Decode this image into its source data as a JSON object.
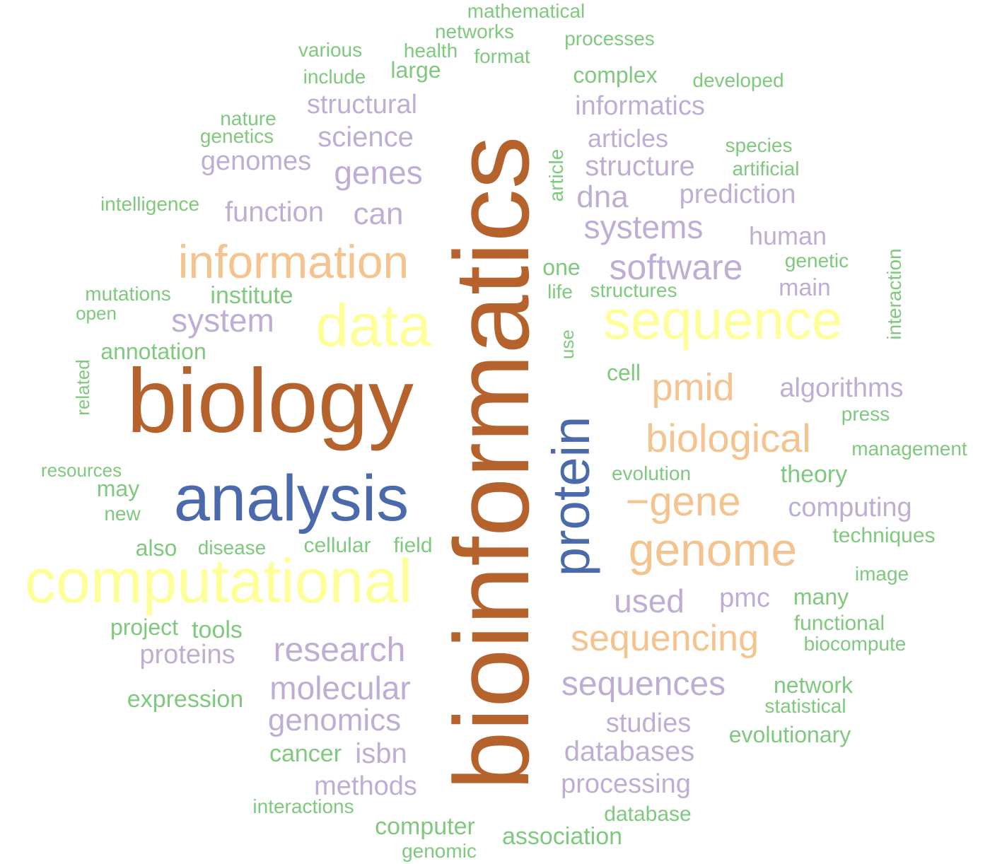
{
  "palette": {
    "brown": "#b5622d",
    "blue": "#4a6aab",
    "yellow": "#ffff99",
    "orange": "#f5c38e",
    "purple": "#beaed4",
    "green": "#7fc97f"
  },
  "words": [
    {
      "text": "bioinformatics",
      "color": "brown",
      "vertical": true
    },
    {
      "text": "biology",
      "color": "brown"
    },
    {
      "text": "analysis",
      "color": "blue"
    },
    {
      "text": "protein",
      "color": "blue",
      "vertical": true
    },
    {
      "text": "data",
      "color": "yellow"
    },
    {
      "text": "sequence",
      "color": "yellow"
    },
    {
      "text": "computational",
      "color": "yellow"
    },
    {
      "text": "information",
      "color": "orange"
    },
    {
      "text": "pmid",
      "color": "orange"
    },
    {
      "text": "biological",
      "color": "orange"
    },
    {
      "text": "−gene",
      "color": "orange"
    },
    {
      "text": "genome",
      "color": "orange"
    },
    {
      "text": "sequencing",
      "color": "orange"
    },
    {
      "text": "structural",
      "color": "purple"
    },
    {
      "text": "informatics",
      "color": "purple"
    },
    {
      "text": "science",
      "color": "purple"
    },
    {
      "text": "articles",
      "color": "purple"
    },
    {
      "text": "genomes",
      "color": "purple"
    },
    {
      "text": "genes",
      "color": "purple"
    },
    {
      "text": "structure",
      "color": "purple"
    },
    {
      "text": "dna",
      "color": "purple"
    },
    {
      "text": "prediction",
      "color": "purple"
    },
    {
      "text": "function",
      "color": "purple"
    },
    {
      "text": "can",
      "color": "purple"
    },
    {
      "text": "systems",
      "color": "purple"
    },
    {
      "text": "human",
      "color": "purple"
    },
    {
      "text": "software",
      "color": "purple"
    },
    {
      "text": "main",
      "color": "purple"
    },
    {
      "text": "system",
      "color": "purple"
    },
    {
      "text": "algorithms",
      "color": "purple"
    },
    {
      "text": "computing",
      "color": "purple"
    },
    {
      "text": "used",
      "color": "purple"
    },
    {
      "text": "pmc",
      "color": "purple"
    },
    {
      "text": "research",
      "color": "purple"
    },
    {
      "text": "proteins",
      "color": "purple"
    },
    {
      "text": "molecular",
      "color": "purple"
    },
    {
      "text": "sequences",
      "color": "purple"
    },
    {
      "text": "genomics",
      "color": "purple"
    },
    {
      "text": "studies",
      "color": "purple"
    },
    {
      "text": "isbn",
      "color": "purple"
    },
    {
      "text": "databases",
      "color": "purple"
    },
    {
      "text": "methods",
      "color": "purple"
    },
    {
      "text": "processing",
      "color": "purple"
    },
    {
      "text": "mathematical",
      "color": "green"
    },
    {
      "text": "networks",
      "color": "green"
    },
    {
      "text": "processes",
      "color": "green"
    },
    {
      "text": "various",
      "color": "green"
    },
    {
      "text": "health",
      "color": "green"
    },
    {
      "text": "format",
      "color": "green"
    },
    {
      "text": "large",
      "color": "green"
    },
    {
      "text": "include",
      "color": "green"
    },
    {
      "text": "complex",
      "color": "green"
    },
    {
      "text": "developed",
      "color": "green"
    },
    {
      "text": "nature",
      "color": "green"
    },
    {
      "text": "genetics",
      "color": "green"
    },
    {
      "text": "species",
      "color": "green"
    },
    {
      "text": "article",
      "color": "green",
      "vertical": true
    },
    {
      "text": "artificial",
      "color": "green"
    },
    {
      "text": "intelligence",
      "color": "green"
    },
    {
      "text": "interaction",
      "color": "green",
      "vertical": true
    },
    {
      "text": "genetic",
      "color": "green"
    },
    {
      "text": "one",
      "color": "green"
    },
    {
      "text": "mutations",
      "color": "green"
    },
    {
      "text": "institute",
      "color": "green"
    },
    {
      "text": "life",
      "color": "green"
    },
    {
      "text": "structures",
      "color": "green"
    },
    {
      "text": "open",
      "color": "green"
    },
    {
      "text": "annotation",
      "color": "green"
    },
    {
      "text": "use",
      "color": "green",
      "vertical": true
    },
    {
      "text": "related",
      "color": "green",
      "vertical": true
    },
    {
      "text": "cell",
      "color": "green"
    },
    {
      "text": "press",
      "color": "green"
    },
    {
      "text": "management",
      "color": "green"
    },
    {
      "text": "resources",
      "color": "green"
    },
    {
      "text": "evolution",
      "color": "green"
    },
    {
      "text": "theory",
      "color": "green"
    },
    {
      "text": "may",
      "color": "green"
    },
    {
      "text": "new",
      "color": "green"
    },
    {
      "text": "techniques",
      "color": "green"
    },
    {
      "text": "also",
      "color": "green"
    },
    {
      "text": "disease",
      "color": "green"
    },
    {
      "text": "cellular",
      "color": "green"
    },
    {
      "text": "field",
      "color": "green"
    },
    {
      "text": "image",
      "color": "green"
    },
    {
      "text": "many",
      "color": "green"
    },
    {
      "text": "project",
      "color": "green"
    },
    {
      "text": "tools",
      "color": "green"
    },
    {
      "text": "functional",
      "color": "green"
    },
    {
      "text": "biocompute",
      "color": "green"
    },
    {
      "text": "network",
      "color": "green"
    },
    {
      "text": "expression",
      "color": "green"
    },
    {
      "text": "statistical",
      "color": "green"
    },
    {
      "text": "evolutionary",
      "color": "green"
    },
    {
      "text": "cancer",
      "color": "green"
    },
    {
      "text": "interactions",
      "color": "green"
    },
    {
      "text": "database",
      "color": "green"
    },
    {
      "text": "computer",
      "color": "green"
    },
    {
      "text": "association",
      "color": "green"
    },
    {
      "text": "genomic",
      "color": "green"
    }
  ]
}
